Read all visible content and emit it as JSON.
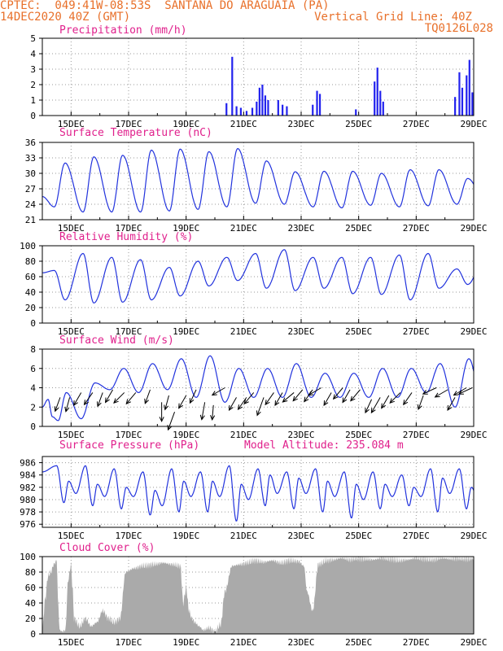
{
  "header": {
    "line1_left": "CPTEC:  049:41W-08:53S  SANTANA DO ARAGUAIA (PA)",
    "line2_left": "14DEC2020 40Z (GMT)",
    "line2_right": "Vertical Grid Line: 40Z",
    "line3_right": "TQ0126L028"
  },
  "colors": {
    "line": "#2233dd",
    "bar": "#2222ee",
    "cloud": "#aaaaaa",
    "title": "#e0208c",
    "header": "#e8702a"
  },
  "chart_data": [
    {
      "id": "precip",
      "type": "bar",
      "title": "Precipitation (mm/h)",
      "xlabel": "",
      "ylabel": "",
      "ylim": [
        0,
        5
      ],
      "yticks": [
        "0",
        "1",
        "2",
        "3",
        "4",
        "5"
      ],
      "x_ticks": [
        "15DEC",
        "17DEC",
        "19DEC",
        "21DEC",
        "23DEC",
        "25DEC",
        "27DEC",
        "29DEC"
      ],
      "grid": true,
      "events": [
        [
          20.4,
          0.8
        ],
        [
          20.6,
          3.8
        ],
        [
          20.75,
          0.6
        ],
        [
          20.9,
          0.5
        ],
        [
          21.1,
          0.3
        ],
        [
          21.3,
          0.5
        ],
        [
          21.45,
          0.9
        ],
        [
          21.55,
          1.8
        ],
        [
          21.65,
          2.0
        ],
        [
          21.75,
          1.3
        ],
        [
          21.85,
          1.0
        ],
        [
          22.2,
          1.0
        ],
        [
          22.35,
          0.7
        ],
        [
          22.5,
          0.6
        ],
        [
          23.4,
          0.7
        ],
        [
          23.55,
          1.6
        ],
        [
          23.65,
          1.4
        ],
        [
          24.9,
          0.4
        ],
        [
          25.55,
          2.2
        ],
        [
          25.65,
          3.1
        ],
        [
          25.75,
          1.6
        ],
        [
          25.85,
          0.9
        ],
        [
          28.35,
          1.2
        ],
        [
          28.5,
          2.8
        ],
        [
          28.6,
          1.8
        ],
        [
          28.75,
          2.6
        ],
        [
          28.85,
          3.6
        ],
        [
          28.95,
          1.5
        ]
      ]
    },
    {
      "id": "temp",
      "type": "line",
      "title": "Surface Temperature (nC)",
      "ylim": [
        21,
        36
      ],
      "yticks": [
        "21",
        "24",
        "27",
        "30",
        "33",
        "36"
      ],
      "x_ticks": [
        "15DEC",
        "17DEC",
        "19DEC",
        "21DEC",
        "23DEC",
        "25DEC",
        "27DEC",
        "29DEC"
      ],
      "grid": true,
      "min_hour": 10,
      "max_hour": 19,
      "daily_min": [
        23.5,
        22.5,
        22.5,
        22.5,
        22.7,
        23.0,
        23.5,
        24.2,
        24.0,
        23.5,
        23.3,
        23.8,
        23.5,
        23.7,
        24.0,
        24.5
      ],
      "daily_max": [
        32.0,
        33.2,
        33.5,
        34.5,
        34.7,
        34.2,
        34.8,
        32.4,
        30.3,
        30.4,
        30.4,
        30.0,
        30.7,
        30.7,
        29.0,
        32.8,
        34.5
      ]
    },
    {
      "id": "rh",
      "type": "line",
      "title": "Relative Humidity (%)",
      "ylim": [
        0,
        100
      ],
      "yticks": [
        "0",
        "20",
        "40",
        "60",
        "80",
        "100"
      ],
      "x_ticks": [
        "15DEC",
        "17DEC",
        "19DEC",
        "21DEC",
        "23DEC",
        "25DEC",
        "27DEC",
        "29DEC"
      ],
      "grid": true,
      "min_hour": 19,
      "max_hour": 10,
      "daily_max": [
        68,
        90,
        85,
        82,
        72,
        80,
        85,
        90,
        95,
        85,
        85,
        85,
        88,
        90,
        70,
        88
      ],
      "daily_min": [
        30,
        26,
        27,
        30,
        35,
        48,
        55,
        45,
        42,
        45,
        38,
        37,
        30,
        45,
        50
      ]
    },
    {
      "id": "wind",
      "type": "line",
      "title": "Surface Wind (m/s)",
      "ylim": [
        0,
        8
      ],
      "yticks": [
        "0",
        "2",
        "4",
        "6",
        "8"
      ],
      "x_ticks": [
        "15DEC",
        "17DEC",
        "19DEC",
        "21DEC",
        "23DEC",
        "25DEC",
        "27DEC",
        "29DEC"
      ],
      "grid": true,
      "peak_hour": 20,
      "daily_peak": [
        3.5,
        4.5,
        6.0,
        6.5,
        7.0,
        7.3,
        6.0,
        6.0,
        6.5,
        5.5,
        5.5,
        6.0,
        6.0,
        6.5,
        7.0,
        4.5
      ],
      "daily_base": [
        0.8,
        3.8,
        3.5,
        3.8,
        3.0,
        2.5,
        3.0,
        3.0,
        3.0,
        3.0,
        3.0,
        3.0,
        3.5,
        2.0,
        1.5
      ],
      "arrows": [
        [
          14.62,
          3.0,
          200,
          1
        ],
        [
          14.95,
          3.0,
          195,
          1
        ],
        [
          15.35,
          3.5,
          210,
          1
        ],
        [
          15.75,
          3.5,
          215,
          1
        ],
        [
          16.1,
          3.5,
          200,
          1
        ],
        [
          16.45,
          3.8,
          210,
          1
        ],
        [
          16.85,
          3.5,
          225,
          1
        ],
        [
          17.25,
          3.5,
          220,
          1
        ],
        [
          17.75,
          3.8,
          200,
          1
        ],
        [
          18.15,
          2.5,
          180,
          1.3
        ],
        [
          18.4,
          3.2,
          195,
          1
        ],
        [
          18.6,
          1.5,
          200,
          1.3
        ],
        [
          19.0,
          3.2,
          210,
          1
        ],
        [
          19.35,
          3.8,
          205,
          1
        ],
        [
          19.65,
          2.5,
          190,
          1.2
        ],
        [
          19.95,
          2.2,
          185,
          1
        ],
        [
          20.35,
          4.0,
          240,
          1
        ],
        [
          20.75,
          3.0,
          210,
          1
        ],
        [
          21.1,
          3.0,
          215,
          1
        ],
        [
          21.35,
          3.5,
          220,
          1
        ],
        [
          21.7,
          3.0,
          200,
          1.3
        ],
        [
          22.05,
          3.5,
          215,
          1
        ],
        [
          22.35,
          3.5,
          210,
          1
        ],
        [
          22.75,
          3.5,
          230,
          1
        ],
        [
          23.05,
          3.8,
          220,
          1
        ],
        [
          23.4,
          3.8,
          215,
          1
        ],
        [
          23.7,
          4.0,
          240,
          1
        ],
        [
          24.05,
          3.5,
          210,
          1
        ],
        [
          24.45,
          4.0,
          220,
          1
        ],
        [
          24.7,
          3.8,
          210,
          1
        ],
        [
          25.05,
          3.8,
          220,
          1
        ],
        [
          25.45,
          2.8,
          205,
          1
        ],
        [
          25.75,
          3.0,
          210,
          1.2
        ],
        [
          26.05,
          3.2,
          210,
          1
        ],
        [
          26.45,
          3.5,
          225,
          1
        ],
        [
          26.85,
          3.5,
          215,
          1
        ],
        [
          27.25,
          3.2,
          200,
          1
        ],
        [
          27.7,
          4.0,
          245,
          1
        ],
        [
          28.1,
          3.8,
          240,
          1
        ],
        [
          28.35,
          3.0,
          210,
          1
        ],
        [
          28.75,
          4.0,
          240,
          1
        ],
        [
          28.95,
          4.0,
          245,
          1
        ]
      ]
    },
    {
      "id": "pressure",
      "type": "line",
      "title": "Surface Pressure (hPa)",
      "annotation": "Model Altitude: 235.084 m",
      "ylim": [
        975.5,
        987
      ],
      "yticks": [
        "976",
        "978",
        "980",
        "982",
        "984",
        "986"
      ],
      "x_ticks": [
        "15DEC",
        "17DEC",
        "19DEC",
        "21DEC",
        "23DEC",
        "25DEC",
        "27DEC",
        "29DEC"
      ],
      "grid": true,
      "hi1_hour": 12,
      "lo1_hour": 18,
      "hi2_hour": 22,
      "lo2_hour": 4,
      "day_hi1": [
        985.5,
        985.5,
        985.0,
        984.5,
        985.0,
        984.5,
        985.5,
        985.0,
        984.5,
        985.0,
        984.5,
        984.5,
        984.0,
        985.0,
        985.0,
        983.5
      ],
      "day_lo1": [
        979.5,
        979.0,
        978.5,
        977.5,
        978.0,
        978.0,
        976.5,
        979.0,
        978.5,
        978.0,
        977.0,
        978.5,
        979.0,
        978.0,
        978.5
      ],
      "day_hi2": [
        983.0,
        982.5,
        982.0,
        981.5,
        983.0,
        983.0,
        982.5,
        984.0,
        983.5,
        983.0,
        982.5,
        982.5,
        982.0,
        983.5,
        982.0
      ],
      "day_lo2": [
        981.0,
        980.5,
        980.5,
        979.0,
        980.5,
        980.5,
        980.0,
        981.0,
        981.0,
        980.5,
        980.0,
        980.5,
        980.5,
        981.0,
        980.0
      ]
    },
    {
      "id": "cloud",
      "type": "area",
      "title": "Cloud Cover (%)",
      "ylim": [
        0,
        100
      ],
      "yticks": [
        "0",
        "20",
        "40",
        "60",
        "80",
        "100"
      ],
      "x_ticks": [
        "15DEC",
        "17DEC",
        "19DEC",
        "21DEC",
        "23DEC",
        "25DEC",
        "27DEC",
        "29DEC"
      ],
      "grid": true,
      "knots": [
        [
          14.0,
          5
        ],
        [
          14.1,
          45
        ],
        [
          14.2,
          75
        ],
        [
          14.3,
          80
        ],
        [
          14.4,
          90
        ],
        [
          14.5,
          95
        ],
        [
          14.55,
          40
        ],
        [
          14.6,
          5
        ],
        [
          14.7,
          3
        ],
        [
          14.8,
          5
        ],
        [
          14.9,
          70
        ],
        [
          15.0,
          90
        ],
        [
          15.05,
          60
        ],
        [
          15.1,
          20
        ],
        [
          15.3,
          10
        ],
        [
          15.5,
          20
        ],
        [
          15.7,
          10
        ],
        [
          15.9,
          15
        ],
        [
          16.1,
          30
        ],
        [
          16.3,
          20
        ],
        [
          16.5,
          15
        ],
        [
          16.7,
          20
        ],
        [
          16.9,
          80
        ],
        [
          17.2,
          85
        ],
        [
          17.5,
          88
        ],
        [
          17.9,
          90
        ],
        [
          18.2,
          92
        ],
        [
          18.5,
          90
        ],
        [
          18.8,
          88
        ],
        [
          18.9,
          40
        ],
        [
          19.0,
          60
        ],
        [
          19.1,
          30
        ],
        [
          19.2,
          20
        ],
        [
          19.3,
          15
        ],
        [
          19.45,
          10
        ],
        [
          19.6,
          5
        ],
        [
          19.8,
          8
        ],
        [
          20.0,
          3
        ],
        [
          20.2,
          12
        ],
        [
          20.35,
          55
        ],
        [
          20.6,
          88
        ],
        [
          20.9,
          90
        ],
        [
          21.1,
          92
        ],
        [
          21.4,
          95
        ],
        [
          21.7,
          93
        ],
        [
          22.0,
          95
        ],
        [
          22.3,
          92
        ],
        [
          22.6,
          95
        ],
        [
          22.9,
          94
        ],
        [
          23.1,
          88
        ],
        [
          23.2,
          55
        ],
        [
          23.4,
          30
        ],
        [
          23.6,
          90
        ],
        [
          23.9,
          95
        ],
        [
          24.1,
          96
        ],
        [
          24.4,
          98
        ],
        [
          24.7,
          96
        ],
        [
          24.9,
          98
        ],
        [
          25.2,
          97
        ],
        [
          25.5,
          96
        ],
        [
          25.8,
          98
        ],
        [
          26.1,
          97
        ],
        [
          26.4,
          95
        ],
        [
          26.7,
          96
        ],
        [
          27.0,
          98
        ],
        [
          27.3,
          97
        ],
        [
          27.6,
          96
        ],
        [
          27.9,
          98
        ],
        [
          28.2,
          97
        ],
        [
          28.5,
          98
        ],
        [
          28.8,
          97
        ],
        [
          29.0,
          98
        ]
      ]
    }
  ]
}
